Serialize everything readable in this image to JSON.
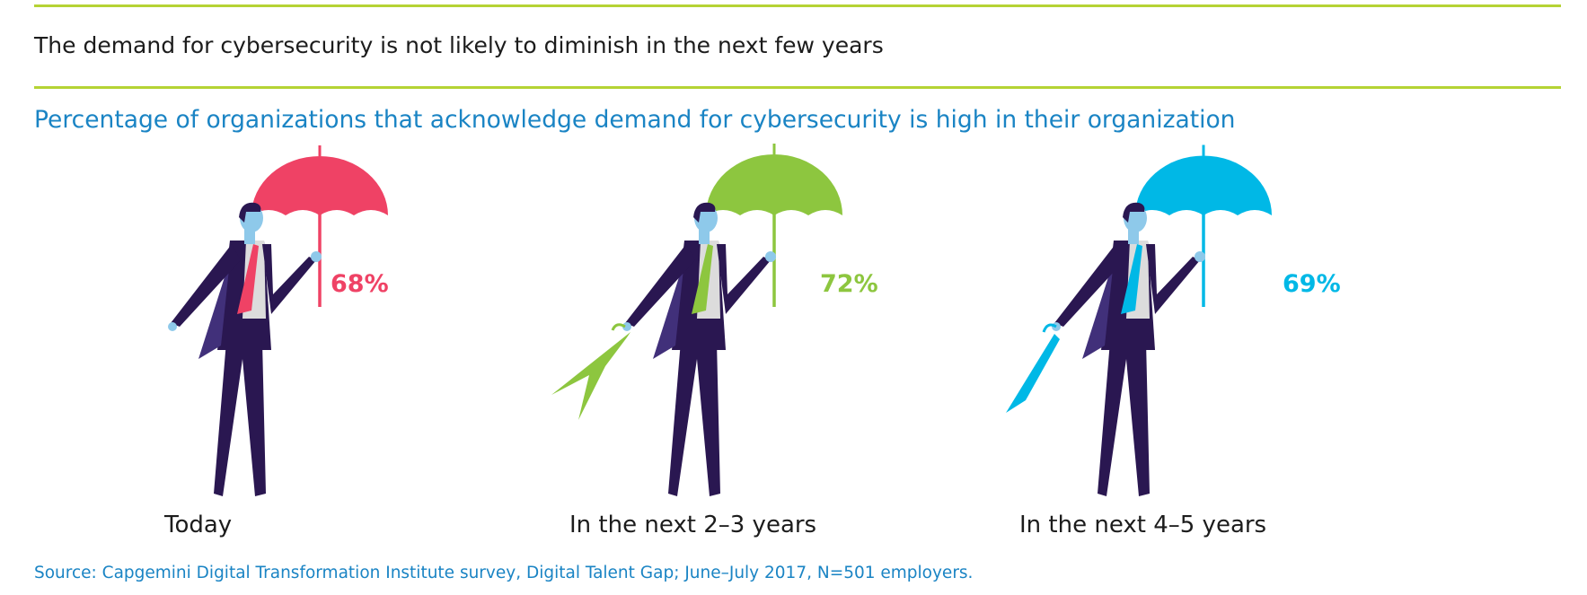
{
  "header": {
    "heading": "The demand for cybersecurity is not likely to diminish in the next few years"
  },
  "chart_data": {
    "type": "bar",
    "title": "Percentage of organizations that acknowledge demand for cybersecurity is high in their organization",
    "categories": [
      "Today",
      "In the next 2–3 years",
      "In the next 4–5 years"
    ],
    "values": [
      68,
      72,
      69
    ],
    "value_labels": [
      "68%",
      "72%",
      "69%"
    ],
    "unit": "%",
    "colors": [
      "#ef4265",
      "#8dc63f",
      "#00b8e6"
    ],
    "figure_colors": {
      "suit": "#2a1751",
      "skin": "#8ec9ea",
      "shirt": "#dcdcdc"
    }
  },
  "footer": {
    "source": "Source: Capgemini Digital Transformation Institute survey, Digital Talent Gap; June–July 2017, N=501 employers."
  }
}
